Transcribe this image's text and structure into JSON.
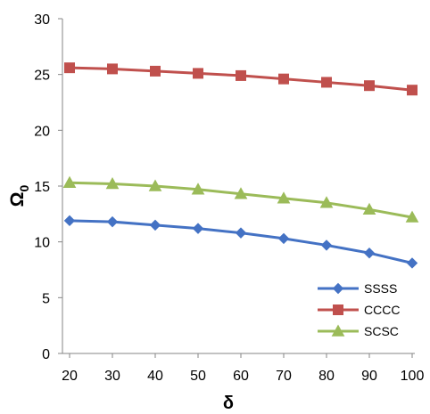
{
  "chart_data": {
    "type": "line",
    "title": "",
    "xlabel": "δ",
    "ylabel": "Ω",
    "ylabel_subscript": "0",
    "x": [
      20,
      30,
      40,
      50,
      60,
      70,
      80,
      90,
      100
    ],
    "xlim": [
      20,
      100
    ],
    "ylim": [
      0,
      30
    ],
    "y_ticks": [
      0,
      5,
      10,
      15,
      20,
      25,
      30
    ],
    "x_ticks": [
      20,
      30,
      40,
      50,
      60,
      70,
      80,
      90,
      100
    ],
    "grid": false,
    "legend_position": "bottom-right",
    "series": [
      {
        "name": "SSSS",
        "color": "#4472C4",
        "marker": "diamond",
        "values": [
          11.9,
          11.8,
          11.5,
          11.2,
          10.8,
          10.3,
          9.7,
          9.0,
          8.1
        ]
      },
      {
        "name": "CCCC",
        "color": "#C0504D",
        "marker": "square",
        "values": [
          25.6,
          25.5,
          25.3,
          25.1,
          24.9,
          24.6,
          24.3,
          24.0,
          23.6
        ]
      },
      {
        "name": "SCSC",
        "color": "#9BBB59",
        "marker": "triangle",
        "values": [
          15.3,
          15.2,
          15.0,
          14.7,
          14.3,
          13.9,
          13.5,
          12.9,
          12.2
        ]
      }
    ]
  }
}
